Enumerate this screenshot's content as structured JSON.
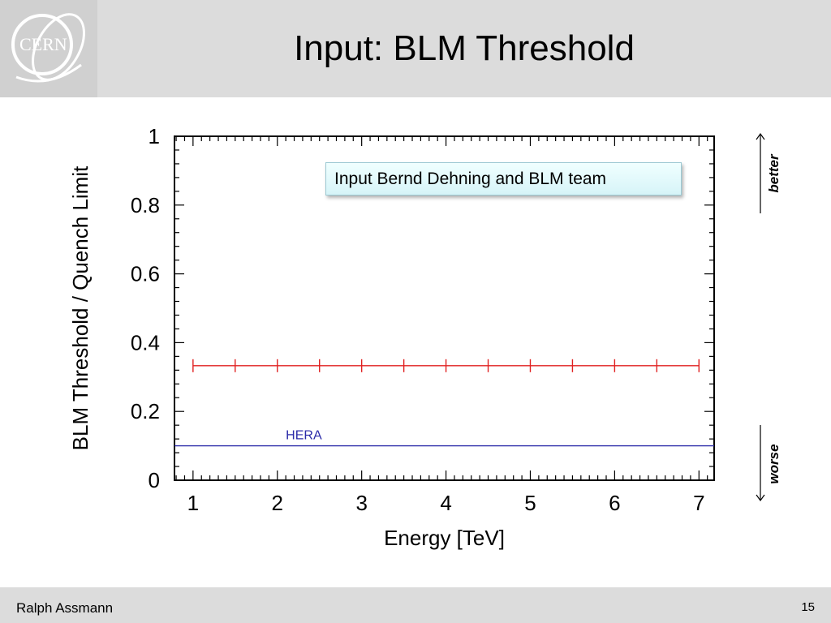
{
  "slide": {
    "title": "Input: BLM Threshold",
    "footer_author": "Ralph Assmann",
    "page_number": "15",
    "logo_text": "CERN"
  },
  "annotation": {
    "note": "Input Bernd Dehning and BLM team",
    "better": "better",
    "worse": "worse"
  },
  "chart_data": {
    "type": "line",
    "xlabel": "Energy [TeV]",
    "ylabel": "BLM Threshold / Quench Limit",
    "xlim": [
      0.78,
      7.18
    ],
    "ylim": [
      0,
      1
    ],
    "xticks": [
      1,
      2,
      3,
      4,
      5,
      6,
      7
    ],
    "yticks": [
      0,
      0.2,
      0.4,
      0.6,
      0.8,
      1
    ],
    "ytick_labels": [
      "0",
      "0.2",
      "0.4",
      "0.6",
      "0.8",
      "1"
    ],
    "grid": false,
    "series": [
      {
        "color": "#e02020",
        "marker": "vertical-tick",
        "x": [
          1,
          1.5,
          2,
          2.5,
          3,
          3.5,
          4,
          4.5,
          5,
          5.5,
          6,
          6.5,
          7
        ],
        "values": [
          0.333,
          0.333,
          0.333,
          0.333,
          0.333,
          0.333,
          0.333,
          0.333,
          0.333,
          0.333,
          0.333,
          0.333,
          0.333
        ]
      },
      {
        "name": "HERA",
        "color": "#2a2aa8",
        "x": [
          0.78,
          7.18
        ],
        "values": [
          0.1,
          0.1
        ]
      }
    ]
  }
}
